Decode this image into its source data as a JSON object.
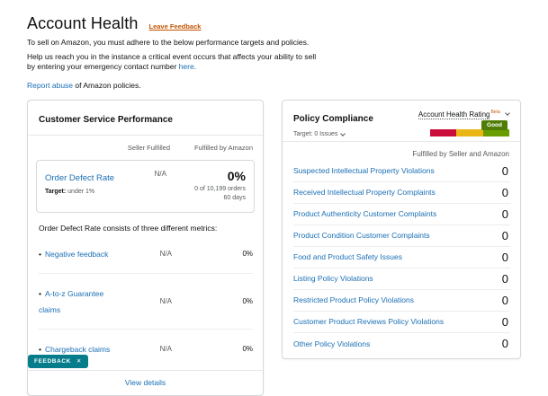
{
  "colors": {
    "link_blue": "#1a6fb5",
    "accent_orange": "#c45500",
    "teal": "#077d8c",
    "seg_red": "#cc0c39",
    "seg_yellow": "#e9b616",
    "seg_green": "#6a9d00",
    "badge_green": "#4f7d06"
  },
  "page": {
    "title": "Account Health",
    "leave_feedback": "Leave Feedback",
    "intro_line1": "To sell on Amazon, you must adhere to the below performance targets and policies.",
    "intro_line2_pre": "Help us reach you in the instance a critical event occurs that affects your ability to sell by entering your emergency contact number ",
    "intro_line2_link": "here",
    "intro_line2_post": ".",
    "report_abuse_link": "Report abuse",
    "report_abuse_rest": " of Amazon policies."
  },
  "customer_service": {
    "title": "Customer Service Performance",
    "columns": {
      "seller": "Seller Fulfilled",
      "fba": "Fulfilled by Amazon"
    },
    "odr": {
      "name": "Order Defect Rate",
      "target_label": "Target:",
      "target_value": " under 1%",
      "seller_value": "N/A",
      "fba_percent": "0%",
      "fba_orders": "0 of 10,199 orders",
      "fba_window": "60 days"
    },
    "metrics_intro": "Order Defect Rate consists of three different metrics:",
    "metrics": [
      {
        "bullet": "•",
        "label": "Negative feedback",
        "seller": "N/A",
        "fba": "0%"
      },
      {
        "bullet": "•",
        "label": "A-to-z Guarantee claims",
        "seller": "N/A",
        "fba": "0%"
      },
      {
        "bullet": "•",
        "label": "Chargeback claims",
        "seller": "N/A",
        "fba": "0%"
      }
    ],
    "view_details": "View details"
  },
  "policy_compliance": {
    "title": "Policy Compliance",
    "target": "Target: 0 Issues",
    "rating_label": "Account Health Rating",
    "rating_beta": "Beta",
    "rating_badge": "Good",
    "column_header": "Fulfilled by Seller and Amazon",
    "items": [
      {
        "label": "Suspected Intellectual Property Violations",
        "value": "0"
      },
      {
        "label": "Received Intellectual Property Complaints",
        "value": "0"
      },
      {
        "label": "Product Authenticity Customer Complaints",
        "value": "0"
      },
      {
        "label": "Product Condition Customer Complaints",
        "value": "0"
      },
      {
        "label": "Food and Product Safety Issues",
        "value": "0"
      },
      {
        "label": "Listing Policy Violations",
        "value": "0"
      },
      {
        "label": "Restricted Product Policy Violations",
        "value": "0"
      },
      {
        "label": "Customer Product Reviews Policy Violations",
        "value": "0"
      },
      {
        "label": "Other Policy Violations",
        "value": "0"
      }
    ]
  },
  "feedback_button": {
    "label": "FEEDBACK",
    "close": "✕"
  }
}
